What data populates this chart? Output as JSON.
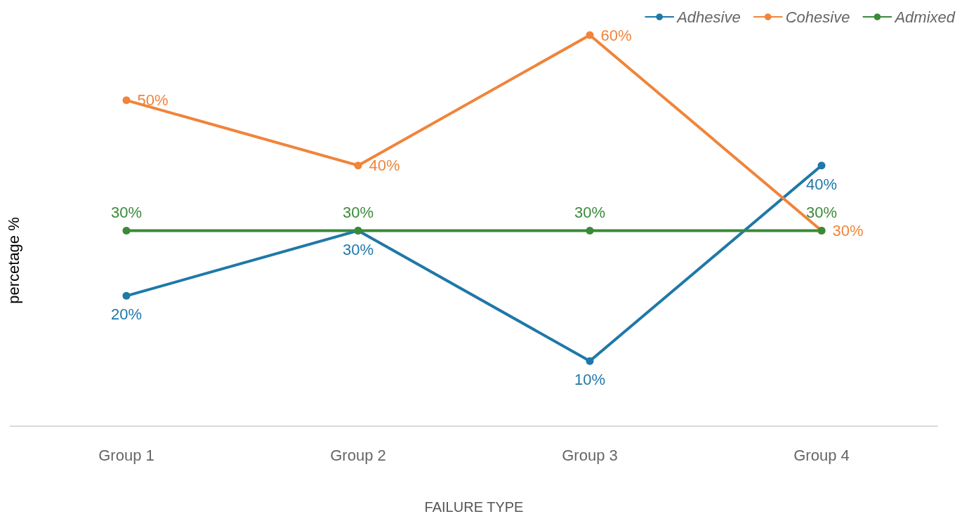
{
  "chart_data": {
    "type": "line",
    "xlabel": "FAILURE TYPE",
    "ylabel": "percetage %",
    "categories": [
      "Group 1",
      "Group 2",
      "Group 3",
      "Group 4"
    ],
    "series": [
      {
        "name": "Adhesive",
        "color": "#1f78a8",
        "values": [
          20,
          30,
          10,
          40
        ],
        "value_labels": [
          "20%",
          "30%",
          "10%",
          "40%"
        ]
      },
      {
        "name": "Cohesive",
        "color": "#f0843a",
        "values": [
          50,
          40,
          60,
          30
        ],
        "value_labels": [
          "50%",
          "40%",
          "60%",
          "30%"
        ]
      },
      {
        "name": "Admixed",
        "color": "#3a8a3a",
        "values": [
          30,
          30,
          30,
          30
        ],
        "value_labels": [
          "30%",
          "30%",
          "30%",
          "30%"
        ]
      }
    ],
    "legend": "top right",
    "marker": "circle",
    "line_style": "solid",
    "grid": false
  }
}
